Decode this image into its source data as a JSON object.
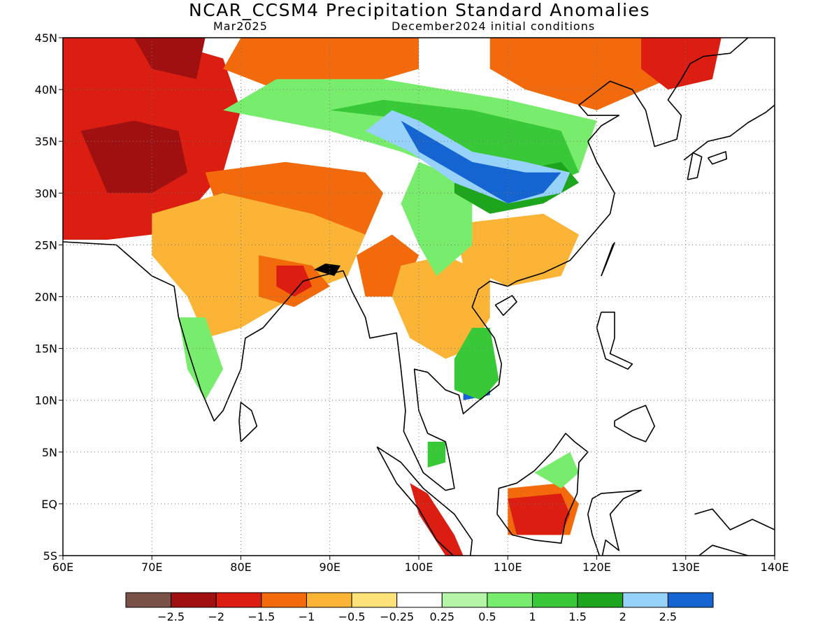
{
  "title": "NCAR_CCSM4 Precipitation Standard Anomalies",
  "subtitle_left": "Mar2025",
  "subtitle_right": "December2024 initial conditions",
  "map": {
    "lon_range": [
      60,
      140
    ],
    "lat_range": [
      -5,
      45
    ],
    "grid": "dotted",
    "lon_ticks": [
      {
        "v": 60,
        "label": "60E"
      },
      {
        "v": 70,
        "label": "70E"
      },
      {
        "v": 80,
        "label": "80E"
      },
      {
        "v": 90,
        "label": "90E"
      },
      {
        "v": 100,
        "label": "100E"
      },
      {
        "v": 110,
        "label": "110E"
      },
      {
        "v": 120,
        "label": "120E"
      },
      {
        "v": 130,
        "label": "130E"
      },
      {
        "v": 140,
        "label": "140E"
      }
    ],
    "lat_ticks": [
      {
        "v": 45,
        "label": "45N"
      },
      {
        "v": 40,
        "label": "40N"
      },
      {
        "v": 35,
        "label": "35N"
      },
      {
        "v": 30,
        "label": "30N"
      },
      {
        "v": 25,
        "label": "25N"
      },
      {
        "v": 20,
        "label": "20N"
      },
      {
        "v": 15,
        "label": "15N"
      },
      {
        "v": 10,
        "label": "10N"
      },
      {
        "v": 5,
        "label": "5N"
      },
      {
        "v": 0,
        "label": "EQ"
      },
      {
        "v": -5,
        "label": "5S"
      }
    ]
  },
  "colorbar": {
    "colors": [
      "#7a5146",
      "#a01010",
      "#dc1e12",
      "#f26a0c",
      "#fbb435",
      "#fde27a",
      "#ffffff",
      "#b4f5a8",
      "#78ec6c",
      "#38c838",
      "#1ea51e",
      "#96d2fa",
      "#1464d2"
    ],
    "labels": [
      "−2.5",
      "−2",
      "−1.5",
      "−1",
      "−0.5",
      "−0.25",
      "0.25",
      "0.5",
      "1",
      "1.5",
      "2",
      "2.5"
    ]
  },
  "anomaly_regions": [
    {
      "name": "afghanistan-pakistan",
      "cat": 2,
      "poly": [
        [
          60,
          45
        ],
        [
          70,
          45
        ],
        [
          78,
          43
        ],
        [
          80,
          38
        ],
        [
          78,
          32
        ],
        [
          75,
          29
        ],
        [
          70,
          26
        ],
        [
          65,
          25.5
        ],
        [
          60,
          25.5
        ]
      ]
    },
    {
      "name": "pakistan-core",
      "cat": 1,
      "poly": [
        [
          62,
          36
        ],
        [
          68,
          37
        ],
        [
          73,
          36
        ],
        [
          74,
          32
        ],
        [
          70,
          30
        ],
        [
          65,
          30
        ]
      ]
    },
    {
      "name": "central-asia-north",
      "cat": 1,
      "poly": [
        [
          68,
          45
        ],
        [
          76,
          45
        ],
        [
          75,
          41
        ],
        [
          70,
          42
        ]
      ]
    },
    {
      "name": "nepal-tibet-south",
      "cat": 2,
      "poly": [
        [
          78,
          30
        ],
        [
          82,
          31
        ],
        [
          90,
          30
        ],
        [
          94,
          28
        ],
        [
          90,
          26.5
        ],
        [
          84,
          27
        ],
        [
          80,
          28
        ]
      ]
    },
    {
      "name": "tibet-south-dry",
      "cat": 3,
      "poly": [
        [
          76,
          32
        ],
        [
          85,
          33
        ],
        [
          94,
          32
        ],
        [
          96,
          30
        ],
        [
          94,
          26
        ],
        [
          86,
          26
        ],
        [
          78,
          27
        ]
      ]
    },
    {
      "name": "india-north",
      "cat": 4,
      "poly": [
        [
          70,
          28
        ],
        [
          78,
          30
        ],
        [
          88,
          28
        ],
        [
          94,
          26
        ],
        [
          92,
          22
        ],
        [
          86,
          20
        ],
        [
          80,
          17
        ],
        [
          76,
          16
        ],
        [
          74,
          20
        ],
        [
          70,
          24
        ]
      ]
    },
    {
      "name": "india-east",
      "cat": 3,
      "poly": [
        [
          82,
          24
        ],
        [
          88,
          23
        ],
        [
          90,
          21
        ],
        [
          86,
          19
        ],
        [
          82,
          20
        ]
      ]
    },
    {
      "name": "myanmar-west",
      "cat": 3,
      "poly": [
        [
          93,
          24
        ],
        [
          97,
          26
        ],
        [
          100,
          24
        ],
        [
          98,
          20
        ],
        [
          94,
          20
        ]
      ]
    },
    {
      "name": "bay-bengal-coast",
      "cat": 2,
      "poly": [
        [
          84,
          23
        ],
        [
          87,
          23
        ],
        [
          88,
          21
        ],
        [
          86,
          20
        ],
        [
          84,
          21
        ]
      ]
    },
    {
      "name": "indochina",
      "cat": 4,
      "poly": [
        [
          98,
          23
        ],
        [
          103,
          24
        ],
        [
          108,
          22
        ],
        [
          108,
          18
        ],
        [
          106,
          15
        ],
        [
          103,
          14
        ],
        [
          99,
          16
        ],
        [
          97,
          20
        ]
      ]
    },
    {
      "name": "south-china",
      "cat": 4,
      "poly": [
        [
          104,
          27
        ],
        [
          114,
          28
        ],
        [
          118,
          26
        ],
        [
          116,
          22
        ],
        [
          110,
          21
        ],
        [
          105,
          23
        ]
      ]
    },
    {
      "name": "mongolia-north",
      "cat": 3,
      "poly": [
        [
          80,
          45
        ],
        [
          100,
          45
        ],
        [
          100,
          42
        ],
        [
          92,
          40
        ],
        [
          84,
          40
        ],
        [
          78,
          42
        ]
      ]
    },
    {
      "name": "northeast-china",
      "cat": 3,
      "poly": [
        [
          108,
          45
        ],
        [
          127,
          45
        ],
        [
          128,
          41
        ],
        [
          120,
          38
        ],
        [
          112,
          40
        ],
        [
          108,
          42
        ]
      ]
    },
    {
      "name": "korea-manchuria",
      "cat": 2,
      "poly": [
        [
          125,
          45
        ],
        [
          134,
          45
        ],
        [
          133,
          41
        ],
        [
          128,
          40
        ],
        [
          125,
          42
        ]
      ]
    },
    {
      "name": "borneo-south",
      "cat": 3,
      "poly": [
        [
          110,
          1.5
        ],
        [
          116,
          2
        ],
        [
          118,
          0
        ],
        [
          117,
          -3
        ],
        [
          110,
          -3
        ]
      ]
    },
    {
      "name": "borneo-south-core",
      "cat": 2,
      "poly": [
        [
          110,
          0.5
        ],
        [
          116,
          1
        ],
        [
          117,
          -1
        ],
        [
          116,
          -3
        ],
        [
          111,
          -3
        ]
      ]
    },
    {
      "name": "sumatra-south",
      "cat": 2,
      "poly": [
        [
          99,
          2
        ],
        [
          101,
          1
        ],
        [
          104,
          -3
        ],
        [
          105,
          -5
        ],
        [
          103,
          -5
        ],
        [
          100,
          -1
        ]
      ]
    },
    {
      "name": "tibet-plateau-wet",
      "cat": 8,
      "poly": [
        [
          78,
          38
        ],
        [
          90,
          36
        ],
        [
          98,
          34
        ],
        [
          104,
          32
        ],
        [
          110,
          30
        ],
        [
          118,
          32
        ],
        [
          120,
          37
        ],
        [
          110,
          39
        ],
        [
          96,
          41
        ],
        [
          84,
          41
        ]
      ]
    },
    {
      "name": "central-china-wet",
      "cat": 9,
      "poly": [
        [
          90,
          38
        ],
        [
          100,
          37
        ],
        [
          106,
          34
        ],
        [
          112,
          30
        ],
        [
          118,
          32
        ],
        [
          116,
          36
        ],
        [
          106,
          38
        ],
        [
          96,
          39
        ]
      ]
    },
    {
      "name": "tibet-green",
      "cat": 8,
      "poly": [
        [
          100,
          33
        ],
        [
          106,
          31
        ],
        [
          106,
          25
        ],
        [
          102,
          22
        ],
        [
          100,
          25
        ],
        [
          98,
          29
        ]
      ]
    },
    {
      "name": "yangtze-strong",
      "cat": 10,
      "poly": [
        [
          104,
          33
        ],
        [
          110,
          32
        ],
        [
          116,
          33
        ],
        [
          118,
          31
        ],
        [
          114,
          29
        ],
        [
          108,
          28
        ],
        [
          104,
          30
        ]
      ]
    },
    {
      "name": "central-china-blue",
      "cat": 11,
      "poly": [
        [
          97,
          38
        ],
        [
          100,
          37
        ],
        [
          106,
          34
        ],
        [
          112,
          33
        ],
        [
          117,
          32
        ],
        [
          116,
          30
        ],
        [
          110,
          29
        ],
        [
          104,
          31
        ],
        [
          99,
          34
        ],
        [
          94,
          36
        ]
      ]
    },
    {
      "name": "central-china-deep",
      "cat": 12,
      "poly": [
        [
          98,
          37
        ],
        [
          102,
          35
        ],
        [
          106,
          33
        ],
        [
          112,
          32
        ],
        [
          116,
          32
        ],
        [
          114,
          30
        ],
        [
          110,
          29
        ],
        [
          106,
          31
        ],
        [
          100,
          34
        ]
      ]
    },
    {
      "name": "vietnam-south",
      "cat": 12,
      "poly": [
        [
          105,
          12.5
        ],
        [
          106,
          16
        ],
        [
          108,
          15
        ],
        [
          108,
          10.5
        ],
        [
          105,
          10
        ]
      ]
    },
    {
      "name": "vietnam-south-green",
      "cat": 9,
      "poly": [
        [
          104,
          14
        ],
        [
          106,
          17
        ],
        [
          108,
          17
        ],
        [
          109,
          12
        ],
        [
          107,
          10
        ],
        [
          104,
          11
        ]
      ]
    },
    {
      "name": "india-west-coast",
      "cat": 8,
      "poly": [
        [
          73,
          18
        ],
        [
          76,
          18
        ],
        [
          78,
          13
        ],
        [
          76,
          10
        ],
        [
          74,
          13
        ]
      ]
    },
    {
      "name": "malaya-wet",
      "cat": 9,
      "poly": [
        [
          101,
          6
        ],
        [
          103,
          6
        ],
        [
          103,
          4
        ],
        [
          101,
          3.5
        ]
      ]
    },
    {
      "name": "borneo-north",
      "cat": 8,
      "poly": [
        [
          113,
          3
        ],
        [
          117,
          5
        ],
        [
          118,
          3
        ],
        [
          116,
          1.5
        ]
      ]
    }
  ]
}
